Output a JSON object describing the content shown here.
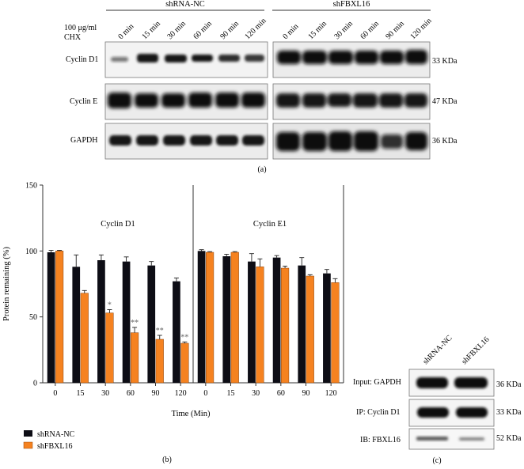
{
  "panel_a": {
    "group_labels": [
      "shRNA-NC",
      "shFBXL16"
    ],
    "treatment_label_line1": "100 μg/ml",
    "treatment_label_line2": "CHX",
    "timepoints": [
      "0 min",
      "15 min",
      "30 min",
      "60 min",
      "90 min",
      "120 min"
    ],
    "rows": [
      {
        "name": "Cyclin D1",
        "kda": "33 KDa"
      },
      {
        "name": "Cyclin E",
        "kda": "47 KDa"
      },
      {
        "name": "GAPDH",
        "kda": "36 KDa"
      }
    ],
    "caption": "(a)"
  },
  "chart_data": {
    "type": "bar",
    "ylabel": "Protein remaining (%)",
    "xlabel": "Time (Min)",
    "ylim": [
      0,
      150
    ],
    "yticks": [
      0,
      50,
      100,
      150
    ],
    "legend_position": "bottom-left",
    "panels": [
      {
        "title": "Cyclin D1",
        "categories": [
          "0",
          "15",
          "30",
          "60",
          "90",
          "120"
        ],
        "series": [
          {
            "name": "shRNA-NC",
            "color": "#0d0d15",
            "values": [
              99,
              88,
              93,
              92,
              89,
              77
            ],
            "errors": [
              1.5,
              9,
              4,
              3.5,
              3,
              2.5
            ]
          },
          {
            "name": "shFBXL16",
            "color": "#f58220",
            "values": [
              100,
              68,
              53,
              38,
              33,
              30
            ],
            "errors": [
              0.5,
              2,
              2.5,
              4,
              3,
              1
            ]
          }
        ],
        "significance": [
          "",
          "",
          "*",
          "**",
          "**",
          "**"
        ]
      },
      {
        "title": "Cyclin E1",
        "categories": [
          "0",
          "15",
          "30",
          "60",
          "90",
          "120"
        ],
        "series": [
          {
            "name": "shRNA-NC",
            "color": "#0d0d15",
            "values": [
              100,
              96,
              92,
              95,
              89,
              83
            ],
            "errors": [
              1,
              1.5,
              6,
              1.5,
              6,
              3
            ]
          },
          {
            "name": "shFBXL16",
            "color": "#f58220",
            "values": [
              99,
              99,
              88,
              87,
              81,
              76
            ],
            "errors": [
              0.5,
              0.5,
              6,
              1.5,
              1,
              3
            ]
          }
        ],
        "significance": [
          "",
          "",
          "",
          "",
          "",
          ""
        ]
      }
    ],
    "caption": "(b)"
  },
  "panel_c": {
    "lanes": [
      "shRNA-NC",
      "shFBXL16"
    ],
    "rows": [
      {
        "name": "Input: GAPDH",
        "kda": "36 KDa"
      },
      {
        "name": "IP: Cyclin D1",
        "kda": "33 KDa"
      },
      {
        "name": "IB: FBXL16",
        "kda": "52 KDa"
      }
    ],
    "caption": "(c)"
  }
}
